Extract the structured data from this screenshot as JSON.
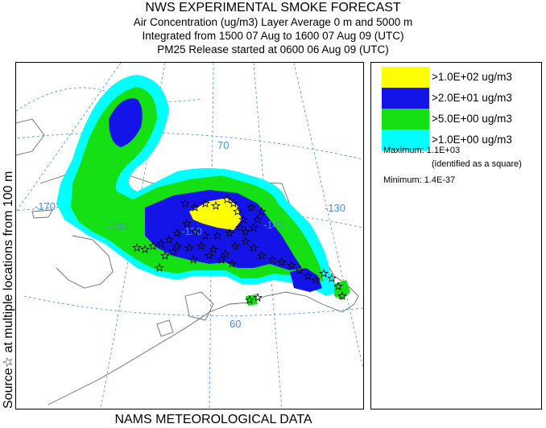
{
  "header": {
    "title": "NWS EXPERIMENTAL SMOKE FORECAST",
    "line2": "Air Concentration (ug/m3) Layer Average    0 m and  5000 m",
    "line3": "Integrated from 1500 07 Aug to 1600 07 Aug 09 (UTC)",
    "line4": "PM25 Release started at 0600 06 Aug 09 (UTC)"
  },
  "side_label": "Source☆ at multiple locations   from   100 m",
  "map": {
    "graticule_labels": {
      "lat_70": "70",
      "lat_60": "60",
      "lon_170": "-170",
      "lon_160": "-160",
      "lon_150": "-150",
      "lon_140": "-140",
      "lon_130": "-130"
    },
    "colors": {
      "coast": "#6b6b6b",
      "grid": "#4a8fd6",
      "source_marker": "#000000"
    },
    "concentration_colors": {
      "gt_100": "#ffff00",
      "gt_20": "#1414e8",
      "gt_5": "#14e014",
      "gt_1": "#00ffff"
    }
  },
  "legend": {
    "items": [
      {
        "color": "#ffff00",
        "label": ">1.0E+02 ug/m3"
      },
      {
        "color": "#1414e8",
        "label": ">2.0E+01 ug/m3"
      },
      {
        "color": "#14e014",
        "label": ">5.0E+00 ug/m3"
      },
      {
        "color": "#00ffff",
        "label": ">1.0E+00 ug/m3"
      }
    ],
    "maximum": "Maximum: 1.1E+03",
    "max_note": "(identified as a square)",
    "minimum": "Minimum: 1.4E-37"
  },
  "footer": "NAMS METEOROLOGICAL DATA"
}
